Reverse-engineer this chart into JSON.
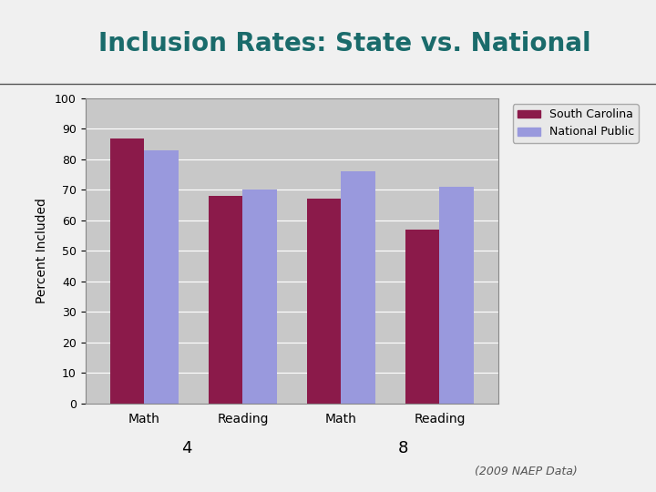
{
  "title": "Inclusion Rates: State vs. National",
  "title_color": "#1a6b6b",
  "subtitle": "(2009 NAEP Data)",
  "ylabel": "Percent Included",
  "figure_background": "#f0f0f0",
  "categories": [
    "Math",
    "Reading",
    "Math",
    "Reading"
  ],
  "sc_values": [
    87,
    68,
    67,
    57
  ],
  "national_values": [
    83,
    70,
    76,
    71
  ],
  "sc_color": "#8B1A4A",
  "national_color": "#9999DD",
  "ylim": [
    0,
    100
  ],
  "yticks": [
    0,
    10,
    20,
    30,
    40,
    50,
    60,
    70,
    80,
    90,
    100
  ],
  "legend_sc": "South Carolina",
  "legend_nat": "National Public",
  "bar_width": 0.35,
  "chart_bg": "#c8c8c8"
}
